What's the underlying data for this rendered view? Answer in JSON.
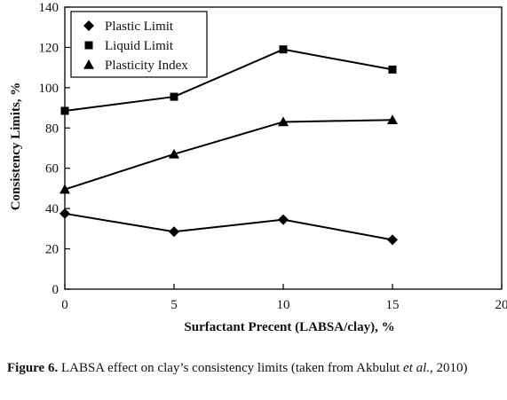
{
  "chart_data": {
    "type": "line",
    "xlabel": "Surfactant Precent (LABSA/clay), %",
    "ylabel": "Consistency Limits, %",
    "xlim": [
      0,
      20
    ],
    "ylim": [
      0,
      140
    ],
    "xticks": [
      "0",
      "5",
      "10",
      "15",
      "20"
    ],
    "yticks": [
      "0",
      "20",
      "40",
      "60",
      "80",
      "100",
      "120",
      "140"
    ],
    "x": [
      0,
      5,
      10,
      15
    ],
    "series": [
      {
        "name": "Plastic Limit",
        "marker": "diamond",
        "values": [
          37.5,
          28.5,
          34.5,
          24.5
        ]
      },
      {
        "name": "Liquid Limit",
        "marker": "square",
        "values": [
          88.5,
          95.5,
          119,
          109
        ]
      },
      {
        "name": "Plasticity Index",
        "marker": "triangle",
        "values": [
          49.5,
          67,
          83,
          84
        ]
      }
    ],
    "legend_position": "top-left",
    "grid": false,
    "color": "#000000"
  },
  "caption": {
    "label": "Figure 6.",
    "text": " LABSA effect on clay’s consistency limits (taken from Akbulut ",
    "italic": "et al.",
    "tail": ", 2010)"
  }
}
